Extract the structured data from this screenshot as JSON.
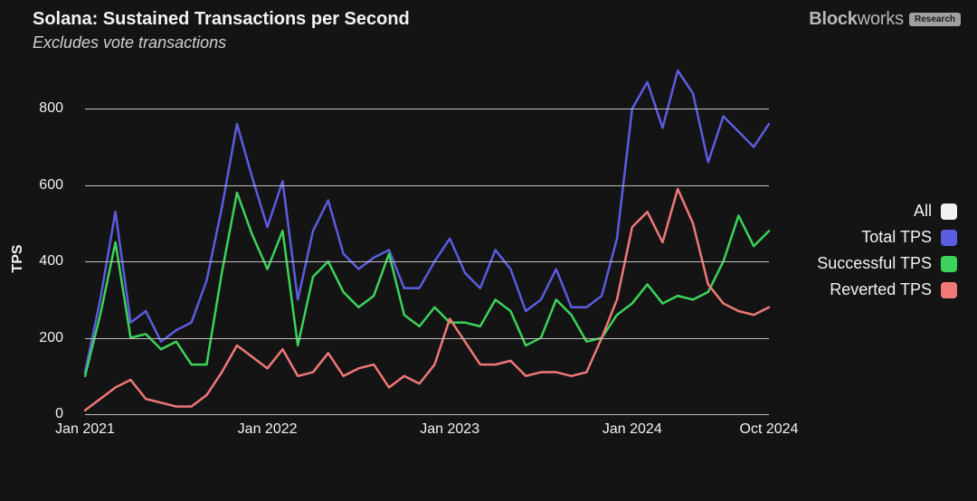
{
  "title": "Solana: Sustained Transactions per Second",
  "subtitle": "Excludes vote transactions",
  "brand": {
    "name_bold": "Block",
    "name_rest": "works",
    "badge": "Research"
  },
  "chart": {
    "type": "line",
    "background_color": "#141414",
    "grid_color": "#bfbfbf",
    "text_color": "#f2f2f2",
    "line_width": 2.5,
    "y_axis": {
      "label": "TPS",
      "min": 0,
      "max": 900,
      "ticks": [
        0,
        200,
        400,
        600,
        800
      ],
      "label_fontsize": 16
    },
    "x_axis": {
      "min_index": 0,
      "max_index": 45,
      "ticks": [
        {
          "index": 0,
          "label": "Jan 2021"
        },
        {
          "index": 12,
          "label": "Jan 2022"
        },
        {
          "index": 24,
          "label": "Jan 2023"
        },
        {
          "index": 36,
          "label": "Jan 2024"
        },
        {
          "index": 45,
          "label": "Oct 2024"
        }
      ],
      "label_fontsize": 16
    },
    "legend": [
      {
        "label": "All",
        "color": "#f2f2f2"
      },
      {
        "label": "Total TPS",
        "color": "#5b5ce0"
      },
      {
        "label": "Successful TPS",
        "color": "#3bd35a"
      },
      {
        "label": "Reverted TPS",
        "color": "#f07878"
      }
    ],
    "series": [
      {
        "name": "Total TPS",
        "color": "#5b5ce0",
        "values": [
          110,
          300,
          530,
          240,
          270,
          190,
          220,
          240,
          350,
          540,
          760,
          620,
          490,
          610,
          300,
          480,
          560,
          420,
          380,
          410,
          430,
          330,
          330,
          400,
          460,
          370,
          330,
          430,
          380,
          270,
          300,
          380,
          280,
          280,
          310,
          460,
          800,
          870,
          750,
          900,
          840,
          660,
          780,
          740,
          700,
          760
        ]
      },
      {
        "name": "Successful TPS",
        "color": "#3bd35a",
        "values": [
          100,
          260,
          450,
          200,
          210,
          170,
          190,
          130,
          130,
          370,
          580,
          470,
          380,
          480,
          180,
          360,
          400,
          320,
          280,
          310,
          420,
          260,
          230,
          280,
          240,
          240,
          230,
          300,
          270,
          180,
          200,
          300,
          260,
          190,
          200,
          260,
          290,
          340,
          290,
          310,
          300,
          320,
          400,
          520,
          440,
          480
        ]
      },
      {
        "name": "Reverted TPS",
        "color": "#f07878",
        "values": [
          10,
          40,
          70,
          90,
          40,
          30,
          20,
          20,
          50,
          110,
          180,
          150,
          120,
          170,
          100,
          110,
          160,
          100,
          120,
          130,
          70,
          100,
          80,
          130,
          250,
          190,
          130,
          130,
          140,
          100,
          110,
          110,
          100,
          110,
          200,
          300,
          490,
          530,
          450,
          590,
          500,
          340,
          290,
          270,
          260,
          280
        ]
      }
    ]
  }
}
